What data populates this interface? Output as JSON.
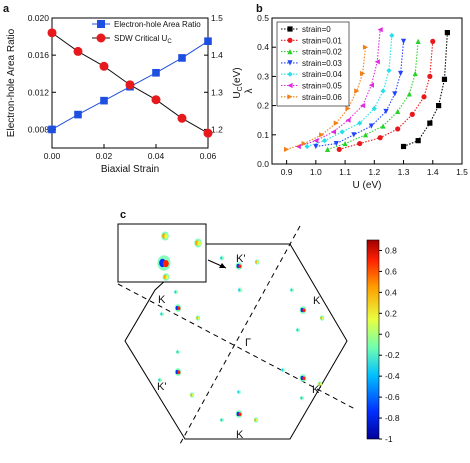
{
  "panels": {
    "a": "a",
    "b": "b",
    "c": "c"
  },
  "chart_data": [
    {
      "type": "line",
      "panel": "a",
      "xlabel": "Biaxial Strain",
      "ylabel_left": "Electron-hole Area Ratio",
      "ylabel_right": "U_C(eV)",
      "xlim": [
        0.0,
        0.06
      ],
      "ylim_left": [
        0.006,
        0.02
      ],
      "ylim_right": [
        1.15,
        1.5
      ],
      "xticks": [
        "0.00",
        "0.02",
        "0.04",
        "0.06"
      ],
      "yticks_left": [
        "0.008",
        "0.012",
        "0.016",
        "0.020"
      ],
      "yticks_right": [
        "1.2",
        "1.3",
        "1.4",
        "1.5"
      ],
      "legend_position": "top",
      "x": [
        0.0,
        0.01,
        0.02,
        0.03,
        0.04,
        0.05,
        0.06
      ],
      "series": [
        {
          "name": "Electron-hole Area Ratio",
          "axis": "left",
          "marker": "square",
          "color": "#1f4fe0",
          "values": [
            0.008,
            0.0096,
            0.0111,
            0.0126,
            0.0141,
            0.0157,
            0.0175
          ]
        },
        {
          "name": "SDW Critical U",
          "name_sub": "C",
          "axis": "right",
          "marker": "circle",
          "color": "#e8191c",
          "values": [
            1.46,
            1.41,
            1.37,
            1.32,
            1.28,
            1.23,
            1.19
          ]
        }
      ]
    },
    {
      "type": "line",
      "panel": "b",
      "xlabel": "U (eV)",
      "ylabel": "λ",
      "xlim": [
        0.85,
        1.5
      ],
      "ylim": [
        0.0,
        0.5
      ],
      "xticks": [
        "0.9",
        "1.0",
        "1.1",
        "1.2",
        "1.3",
        "1.4",
        "1.5"
      ],
      "yticks": [
        "0.0",
        "0.1",
        "0.2",
        "0.3",
        "0.4",
        "0.5"
      ],
      "legend_position": "top-left",
      "series": [
        {
          "name": "strain=0",
          "color": "#000000",
          "marker": "square",
          "x": [
            1.3,
            1.35,
            1.39,
            1.42,
            1.44,
            1.45
          ],
          "y": [
            0.06,
            0.08,
            0.14,
            0.2,
            0.29,
            0.45
          ]
        },
        {
          "name": "strain=0.01",
          "color": "#e8191c",
          "marker": "circle",
          "x": [
            1.08,
            1.15,
            1.22,
            1.28,
            1.33,
            1.37,
            1.39,
            1.4
          ],
          "y": [
            0.05,
            0.07,
            0.09,
            0.12,
            0.17,
            0.23,
            0.3,
            0.42
          ]
        },
        {
          "name": "strain=0.02",
          "color": "#2bd12b",
          "marker": "triangle-up",
          "x": [
            1.04,
            1.1,
            1.17,
            1.23,
            1.28,
            1.32,
            1.34,
            1.35
          ],
          "y": [
            0.05,
            0.07,
            0.1,
            0.13,
            0.18,
            0.24,
            0.31,
            0.42
          ]
        },
        {
          "name": "strain=0.03",
          "color": "#2244ff",
          "marker": "triangle-down",
          "x": [
            1.0,
            1.07,
            1.13,
            1.19,
            1.24,
            1.27,
            1.29,
            1.3
          ],
          "y": [
            0.06,
            0.07,
            0.1,
            0.13,
            0.18,
            0.24,
            0.31,
            0.42
          ]
        },
        {
          "name": "strain=0.04",
          "color": "#27e0e6",
          "marker": "diamond",
          "x": [
            0.97,
            1.03,
            1.09,
            1.15,
            1.2,
            1.23,
            1.25,
            1.26
          ],
          "y": [
            0.06,
            0.08,
            0.11,
            0.14,
            0.19,
            0.25,
            0.32,
            0.44
          ]
        },
        {
          "name": "strain=0.05",
          "color": "#e02ae0",
          "marker": "triangle-left",
          "x": [
            0.94,
            1.0,
            1.06,
            1.11,
            1.16,
            1.19,
            1.21,
            1.22
          ],
          "y": [
            0.06,
            0.08,
            0.11,
            0.15,
            0.2,
            0.27,
            0.35,
            0.46
          ]
        },
        {
          "name": "strain=0.06",
          "color": "#f08018",
          "marker": "triangle-right",
          "x": [
            0.9,
            0.96,
            1.02,
            1.07,
            1.11,
            1.14,
            1.16,
            1.17
          ],
          "y": [
            0.05,
            0.07,
            0.1,
            0.14,
            0.19,
            0.25,
            0.31,
            0.4
          ]
        }
      ]
    },
    {
      "type": "heatmap",
      "panel": "c",
      "colorbar_range": [
        -1.0,
        0.9
      ],
      "colorbar_ticks": [
        "0.8",
        "0.6",
        "0.4",
        "0.2",
        "0",
        "-0.2",
        "-0.4",
        "-0.6",
        "-0.8",
        "-1"
      ],
      "colorbar_tick_values": [
        0.8,
        0.6,
        0.4,
        0.2,
        0.0,
        -0.2,
        -0.4,
        -0.6,
        -0.8,
        -1.0
      ],
      "colorscale": [
        "#00009a",
        "#0030ff",
        "#00c0ff",
        "#70ffb0",
        "#e8ff40",
        "#ffa000",
        "#ff2000",
        "#a00000"
      ],
      "point_labels": [
        "K'",
        "K",
        "K",
        "K'",
        "K'",
        "K",
        "Γ"
      ]
    }
  ]
}
